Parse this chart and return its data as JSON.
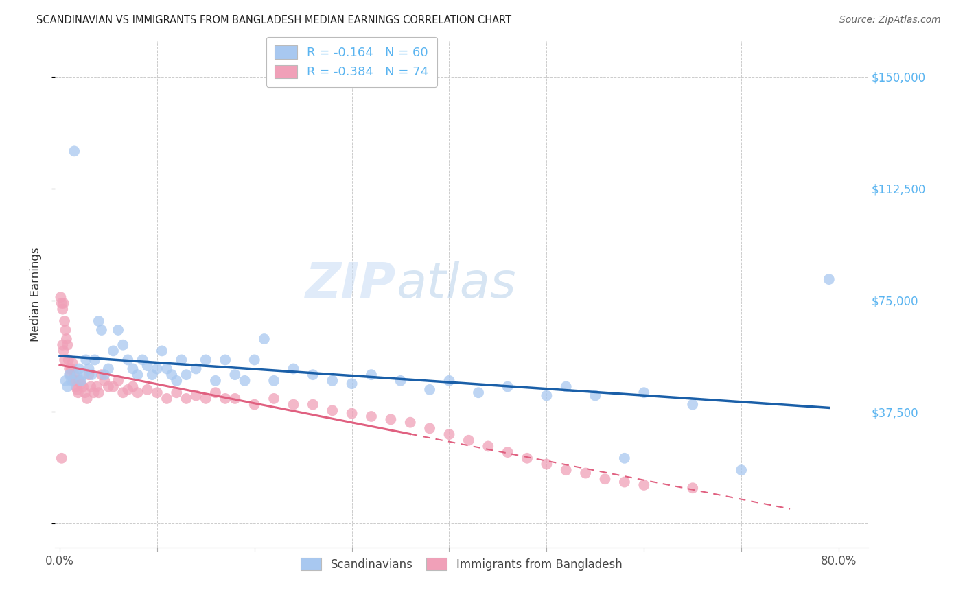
{
  "title": "SCANDINAVIAN VS IMMIGRANTS FROM BANGLADESH MEDIAN EARNINGS CORRELATION CHART",
  "source": "Source: ZipAtlas.com",
  "ylabel": "Median Earnings",
  "yticks": [
    0,
    37500,
    75000,
    112500,
    150000
  ],
  "ytick_labels": [
    "",
    "$37,500",
    "$75,000",
    "$112,500",
    "$150,000"
  ],
  "ylim": [
    -8000,
    162000
  ],
  "xlim": [
    -0.005,
    0.83
  ],
  "legend_text_blue": "R = -0.164   N = 60",
  "legend_text_pink": "R = -0.384   N = 74",
  "legend_labels": [
    "Scandinavians",
    "Immigrants from Bangladesh"
  ],
  "color_blue": "#a8c8f0",
  "color_pink": "#f0a0b8",
  "trendline_blue": "#1a5fa8",
  "trendline_pink": "#e06080",
  "background_color": "#ffffff",
  "grid_color": "#cccccc",
  "title_color": "#222222",
  "axis_label_color": "#333333",
  "ytick_color": "#5ab4f0",
  "source_color": "#666666",
  "scandinavian_x": [
    0.006,
    0.008,
    0.01,
    0.012,
    0.015,
    0.018,
    0.02,
    0.022,
    0.025,
    0.027,
    0.03,
    0.033,
    0.036,
    0.04,
    0.043,
    0.046,
    0.05,
    0.055,
    0.06,
    0.065,
    0.07,
    0.075,
    0.08,
    0.085,
    0.09,
    0.095,
    0.1,
    0.105,
    0.11,
    0.115,
    0.12,
    0.125,
    0.13,
    0.14,
    0.15,
    0.16,
    0.17,
    0.18,
    0.19,
    0.2,
    0.21,
    0.22,
    0.24,
    0.26,
    0.28,
    0.3,
    0.32,
    0.35,
    0.38,
    0.4,
    0.43,
    0.46,
    0.5,
    0.52,
    0.55,
    0.58,
    0.6,
    0.65,
    0.7,
    0.79
  ],
  "scandinavian_y": [
    48000,
    46000,
    50000,
    48000,
    125000,
    50000,
    52000,
    48000,
    50000,
    55000,
    52000,
    50000,
    55000,
    68000,
    65000,
    50000,
    52000,
    58000,
    65000,
    60000,
    55000,
    52000,
    50000,
    55000,
    53000,
    50000,
    52000,
    58000,
    52000,
    50000,
    48000,
    55000,
    50000,
    52000,
    55000,
    48000,
    55000,
    50000,
    48000,
    55000,
    62000,
    48000,
    52000,
    50000,
    48000,
    47000,
    50000,
    48000,
    45000,
    48000,
    44000,
    46000,
    43000,
    46000,
    43000,
    22000,
    44000,
    40000,
    18000,
    82000
  ],
  "bangladesh_x": [
    0.001,
    0.002,
    0.003,
    0.004,
    0.005,
    0.006,
    0.007,
    0.008,
    0.009,
    0.01,
    0.011,
    0.012,
    0.013,
    0.014,
    0.015,
    0.016,
    0.017,
    0.018,
    0.019,
    0.02,
    0.022,
    0.024,
    0.026,
    0.028,
    0.03,
    0.032,
    0.035,
    0.038,
    0.04,
    0.043,
    0.046,
    0.05,
    0.055,
    0.06,
    0.065,
    0.07,
    0.075,
    0.08,
    0.09,
    0.1,
    0.11,
    0.12,
    0.13,
    0.14,
    0.15,
    0.16,
    0.17,
    0.18,
    0.2,
    0.22,
    0.24,
    0.26,
    0.28,
    0.3,
    0.32,
    0.34,
    0.36,
    0.38,
    0.4,
    0.42,
    0.44,
    0.46,
    0.48,
    0.5,
    0.52,
    0.54,
    0.56,
    0.58,
    0.6,
    0.65,
    0.002,
    0.003,
    0.004,
    0.005
  ],
  "bangladesh_y": [
    76000,
    74000,
    72000,
    74000,
    68000,
    65000,
    62000,
    60000,
    55000,
    52000,
    50000,
    52000,
    54000,
    48000,
    50000,
    48000,
    46000,
    45000,
    44000,
    48000,
    47000,
    46000,
    44000,
    42000,
    50000,
    46000,
    44000,
    46000,
    44000,
    50000,
    48000,
    46000,
    46000,
    48000,
    44000,
    45000,
    46000,
    44000,
    45000,
    44000,
    42000,
    44000,
    42000,
    43000,
    42000,
    44000,
    42000,
    42000,
    40000,
    42000,
    40000,
    40000,
    38000,
    37000,
    36000,
    35000,
    34000,
    32000,
    30000,
    28000,
    26000,
    24000,
    22000,
    20000,
    18000,
    17000,
    15000,
    14000,
    13000,
    12000,
    22000,
    60000,
    58000,
    55000
  ],
  "bd_trendline_solid_end_x": 0.36,
  "sc_trendline_start_x": 0.0,
  "sc_trendline_end_x": 0.79
}
